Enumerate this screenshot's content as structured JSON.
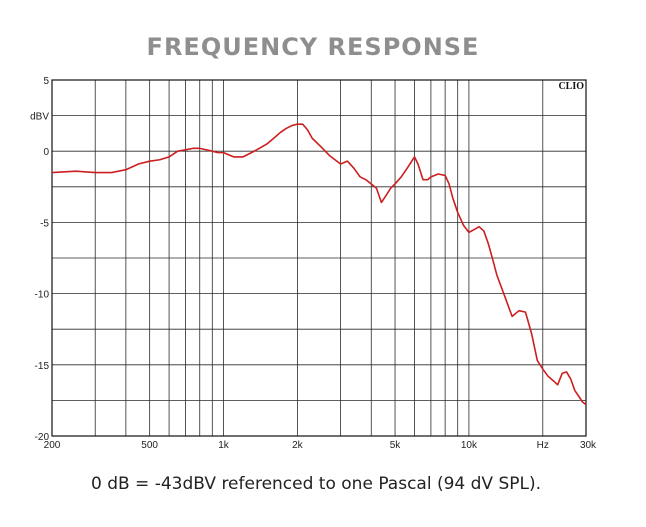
{
  "chart_data": {
    "type": "line",
    "title": "FREQUENCY RESPONSE",
    "ylabel": "dBV",
    "brand": "CLIO",
    "xscale": "log",
    "xlim": [
      200,
      30000
    ],
    "ylim": [
      -20,
      5
    ],
    "grid": true,
    "x_tick_labels": [
      {
        "value": 200,
        "label": "200"
      },
      {
        "value": 500,
        "label": "500"
      },
      {
        "value": 1000,
        "label": "1k"
      },
      {
        "value": 2000,
        "label": "2k"
      },
      {
        "value": 5000,
        "label": "5k"
      },
      {
        "value": 10000,
        "label": "10k"
      },
      {
        "value": 20000,
        "label": "Hz"
      },
      {
        "value": 30000,
        "label": "30k"
      }
    ],
    "y_tick_labels": [
      {
        "value": 5,
        "label": "5"
      },
      {
        "value": 0,
        "label": "0"
      },
      {
        "value": -5,
        "label": "-5"
      },
      {
        "value": -10,
        "label": "-10"
      },
      {
        "value": -15,
        "label": "-15"
      },
      {
        "value": -20,
        "label": "-20"
      }
    ],
    "series": [
      {
        "color": "#cc1f1f",
        "x": [
          200,
          250,
          300,
          350,
          400,
          450,
          500,
          550,
          600,
          650,
          700,
          750,
          800,
          850,
          900,
          950,
          1000,
          1100,
          1200,
          1300,
          1400,
          1500,
          1600,
          1700,
          1800,
          1900,
          2000,
          2100,
          2200,
          2300,
          2500,
          2700,
          3000,
          3200,
          3400,
          3600,
          3800,
          4000,
          4200,
          4400,
          4600,
          4800,
          5000,
          5300,
          5600,
          6000,
          6200,
          6500,
          6800,
          7000,
          7500,
          8000,
          8300,
          8600,
          9000,
          9500,
          10000,
          10500,
          11000,
          11500,
          12000,
          12500,
          13000,
          14000,
          15000,
          16000,
          17000,
          18000,
          19000,
          20000,
          21000,
          22000,
          23000,
          24000,
          25000,
          26000,
          27000,
          28000,
          29000,
          30000
        ],
        "y": [
          -1.5,
          -1.4,
          -1.5,
          -1.5,
          -1.3,
          -0.9,
          -0.7,
          -0.6,
          -0.4,
          0.0,
          0.1,
          0.2,
          0.2,
          0.1,
          0.0,
          -0.1,
          -0.1,
          -0.4,
          -0.4,
          -0.1,
          0.2,
          0.5,
          0.9,
          1.3,
          1.6,
          1.8,
          1.9,
          1.9,
          1.5,
          0.9,
          0.3,
          -0.3,
          -0.9,
          -0.7,
          -1.2,
          -1.8,
          -2.0,
          -2.3,
          -2.6,
          -3.6,
          -3.1,
          -2.6,
          -2.3,
          -1.8,
          -1.2,
          -0.4,
          -0.9,
          -2.0,
          -2.0,
          -1.8,
          -1.6,
          -1.7,
          -2.3,
          -3.3,
          -4.3,
          -5.2,
          -5.7,
          -5.5,
          -5.3,
          -5.6,
          -6.5,
          -7.6,
          -8.7,
          -10.2,
          -11.6,
          -11.2,
          -11.3,
          -12.8,
          -14.7,
          -15.3,
          -15.8,
          -16.1,
          -16.4,
          -15.6,
          -15.5,
          -16.0,
          -16.8,
          -17.2,
          -17.6,
          -17.8
        ]
      }
    ]
  },
  "caption": "0 dB = -43dBV referenced to one Pascal (94 dV SPL)."
}
